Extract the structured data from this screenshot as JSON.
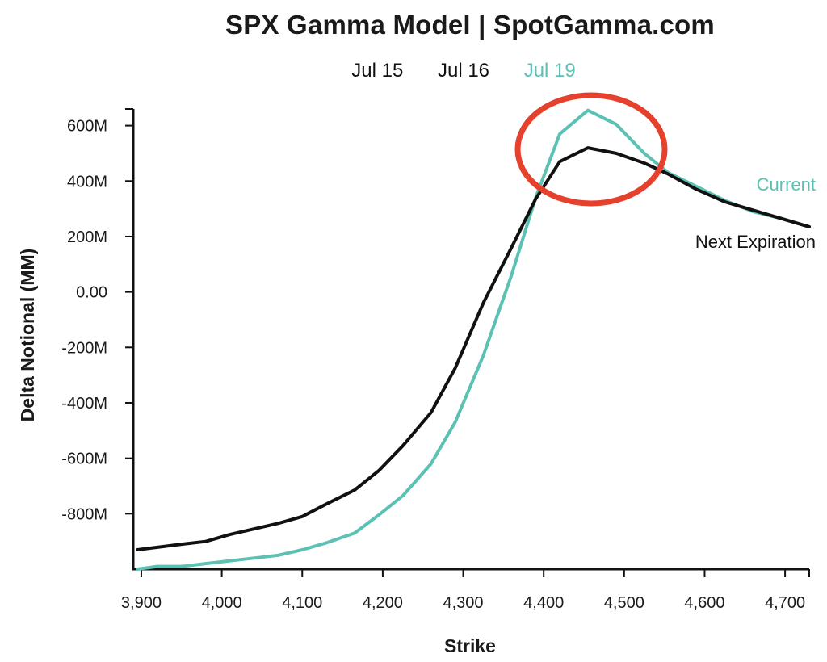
{
  "chart_data": {
    "type": "line",
    "title": "SPX Gamma Model | SpotGamma.com",
    "xlabel": "Strike",
    "ylabel": "Delta Notional (MM)",
    "xlim": [
      3890,
      4730
    ],
    "ylim": [
      -1000,
      660
    ],
    "x_ticks": [
      3900,
      4000,
      4100,
      4200,
      4300,
      4400,
      4500,
      4600,
      4700
    ],
    "x_tick_labels": [
      "3,900",
      "4,000",
      "4,100",
      "4,200",
      "4,300",
      "4,400",
      "4,500",
      "4,600",
      "4,700"
    ],
    "y_ticks": [
      600,
      400,
      200,
      0,
      -200,
      -400,
      -600,
      -800
    ],
    "y_tick_labels": [
      "600M",
      "400M",
      "200M",
      "0.00",
      "-200M",
      "-400M",
      "-600M",
      "-800M"
    ],
    "legend": [
      {
        "label": "Jul 15",
        "color": "#111111"
      },
      {
        "label": "Jul 16",
        "color": "#111111"
      },
      {
        "label": "Jul 19",
        "color": "#5cc1b4"
      }
    ],
    "series": [
      {
        "name": "Current",
        "color": "#5cc1b4",
        "x": [
          3895,
          3920,
          3950,
          3980,
          4010,
          4040,
          4070,
          4100,
          4130,
          4165,
          4195,
          4225,
          4260,
          4290,
          4325,
          4360,
          4390,
          4420,
          4455,
          4490,
          4525,
          4555,
          4590,
          4625,
          4660,
          4695,
          4730
        ],
        "y": [
          -1000,
          -990,
          -990,
          -980,
          -970,
          -960,
          -950,
          -930,
          -905,
          -870,
          -805,
          -735,
          -620,
          -470,
          -230,
          60,
          340,
          570,
          655,
          605,
          500,
          430,
          380,
          330,
          290,
          265,
          235
        ]
      },
      {
        "name": "Next Expiration",
        "color": "#111111",
        "x": [
          3895,
          3950,
          3980,
          4010,
          4040,
          4070,
          4100,
          4130,
          4165,
          4195,
          4225,
          4260,
          4290,
          4325,
          4360,
          4390,
          4420,
          4455,
          4490,
          4525,
          4555,
          4590,
          4625,
          4660,
          4695,
          4730
        ],
        "y": [
          -930,
          -910,
          -900,
          -875,
          -855,
          -835,
          -810,
          -765,
          -715,
          -645,
          -555,
          -435,
          -275,
          -40,
          160,
          335,
          470,
          520,
          500,
          465,
          425,
          370,
          325,
          295,
          265,
          235
        ]
      }
    ],
    "circle_annotation_color": "#e5412d",
    "grid": false
  }
}
